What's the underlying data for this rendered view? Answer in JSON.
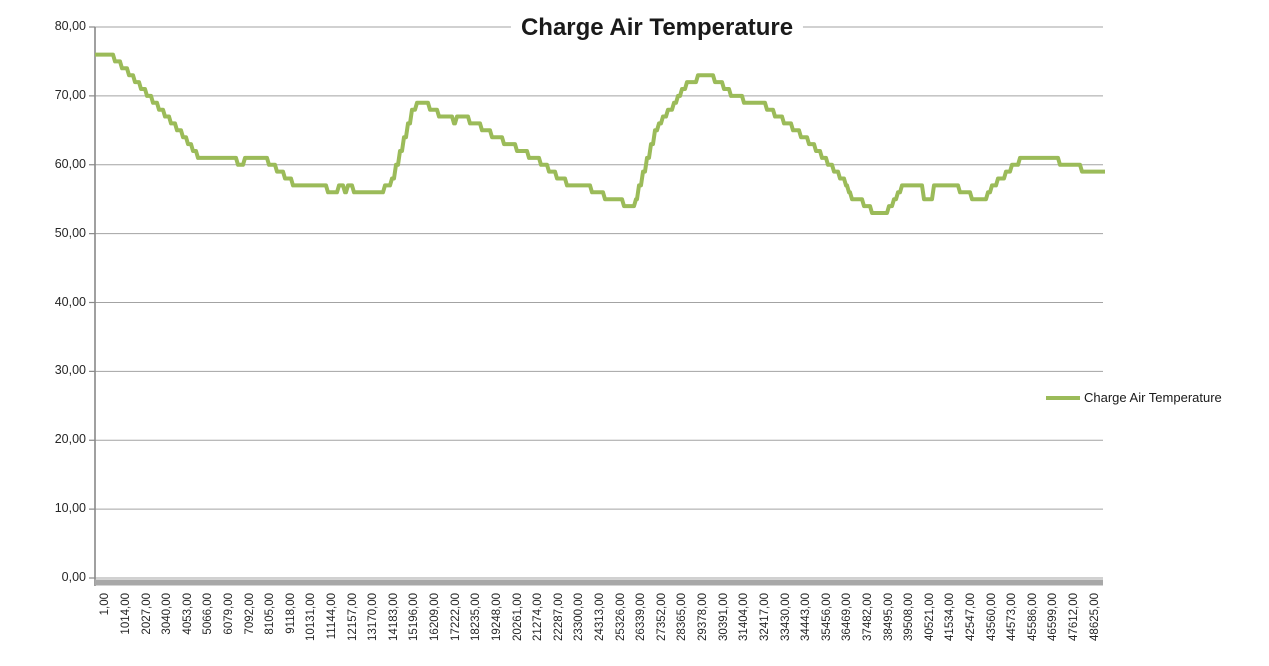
{
  "page": {
    "background": "#ffffff"
  },
  "legend": {
    "label": "Charge Air Temperature"
  },
  "chart_data": {
    "type": "line",
    "title": "Charge Air Temperature",
    "xlabel": "",
    "ylabel": "",
    "ylim": [
      0,
      80
    ],
    "grid": "horizontal",
    "legend_position": "right",
    "colors": {
      "series_line": "#9BBB59",
      "gridline": "#a3a3a3",
      "axis_line": "#898989",
      "x_axis_bar": "#a8a8a8",
      "title_text": "#1a1a1a",
      "tick_text": "#262626"
    },
    "y_tick_labels": [
      "0,00",
      "10,00",
      "20,00",
      "30,00",
      "40,00",
      "50,00",
      "60,00",
      "70,00",
      "80,00"
    ],
    "x_tick_labels": [
      "1,00",
      "1014,00",
      "2027,00",
      "3040,00",
      "4053,00",
      "5066,00",
      "6079,00",
      "7092,00",
      "8105,00",
      "9118,00",
      "10131,00",
      "11144,00",
      "12157,00",
      "13170,00",
      "14183,00",
      "15196,00",
      "16209,00",
      "17222,00",
      "18235,00",
      "19248,00",
      "20261,00",
      "21274,00",
      "22287,00",
      "23300,00",
      "24313,00",
      "25326,00",
      "26339,00",
      "27352,00",
      "28365,00",
      "29378,00",
      "30391,00",
      "31404,00",
      "32417,00",
      "33430,00",
      "34443,00",
      "35456,00",
      "36469,00",
      "37482,00",
      "38495,00",
      "39508,00",
      "40521,00",
      "41534,00",
      "42547,00",
      "43560,00",
      "44573,00",
      "45586,00",
      "46599,00",
      "47612,00",
      "48625,00"
    ],
    "series": [
      {
        "name": "Charge Air Temperature",
        "color": "#9BBB59",
        "points": [
          [
            0,
            76
          ],
          [
            18,
            76
          ],
          [
            20,
            75
          ],
          [
            25,
            75
          ],
          [
            27,
            74
          ],
          [
            32,
            74
          ],
          [
            34,
            73
          ],
          [
            38,
            73
          ],
          [
            40,
            72
          ],
          [
            44,
            72
          ],
          [
            46,
            71
          ],
          [
            50,
            71
          ],
          [
            52,
            70
          ],
          [
            56,
            70
          ],
          [
            58,
            69
          ],
          [
            62,
            69
          ],
          [
            64,
            68
          ],
          [
            68,
            68
          ],
          [
            70,
            67
          ],
          [
            74,
            67
          ],
          [
            76,
            66
          ],
          [
            80,
            66
          ],
          [
            82,
            65
          ],
          [
            86,
            65
          ],
          [
            88,
            64
          ],
          [
            91,
            64
          ],
          [
            93,
            63
          ],
          [
            96,
            63
          ],
          [
            98,
            62
          ],
          [
            101,
            62
          ],
          [
            103,
            61
          ],
          [
            141,
            61
          ],
          [
            143,
            60
          ],
          [
            148,
            60
          ],
          [
            150,
            61
          ],
          [
            172,
            61
          ],
          [
            174,
            60
          ],
          [
            180,
            60
          ],
          [
            182,
            59
          ],
          [
            188,
            59
          ],
          [
            190,
            58
          ],
          [
            196,
            58
          ],
          [
            198,
            57
          ],
          [
            231,
            57
          ],
          [
            233,
            56
          ],
          [
            242,
            56
          ],
          [
            244,
            57
          ],
          [
            248,
            57
          ],
          [
            250,
            56
          ],
          [
            251,
            56
          ],
          [
            253,
            57
          ],
          [
            257,
            57
          ],
          [
            259,
            56
          ],
          [
            288,
            56
          ],
          [
            290,
            57
          ],
          [
            295,
            57
          ],
          [
            297,
            58
          ],
          [
            299,
            58
          ],
          [
            301,
            60
          ],
          [
            303,
            60
          ],
          [
            305,
            62
          ],
          [
            307,
            62
          ],
          [
            309,
            64
          ],
          [
            311,
            64
          ],
          [
            313,
            66
          ],
          [
            315,
            66
          ],
          [
            317,
            68
          ],
          [
            320,
            68
          ],
          [
            322,
            69
          ],
          [
            333,
            69
          ],
          [
            335,
            68
          ],
          [
            342,
            68
          ],
          [
            344,
            67
          ],
          [
            357,
            67
          ],
          [
            359,
            66
          ],
          [
            360,
            66
          ],
          [
            362,
            67
          ],
          [
            373,
            67
          ],
          [
            375,
            66
          ],
          [
            385,
            66
          ],
          [
            387,
            65
          ],
          [
            395,
            65
          ],
          [
            397,
            64
          ],
          [
            407,
            64
          ],
          [
            409,
            63
          ],
          [
            420,
            63
          ],
          [
            422,
            62
          ],
          [
            432,
            62
          ],
          [
            434,
            61
          ],
          [
            444,
            61
          ],
          [
            446,
            60
          ],
          [
            452,
            60
          ],
          [
            454,
            59
          ],
          [
            460,
            59
          ],
          [
            462,
            58
          ],
          [
            470,
            58
          ],
          [
            472,
            57
          ],
          [
            495,
            57
          ],
          [
            497,
            56
          ],
          [
            508,
            56
          ],
          [
            510,
            55
          ],
          [
            527,
            55
          ],
          [
            529,
            54
          ],
          [
            539,
            54
          ],
          [
            541,
            55
          ],
          [
            542,
            55
          ],
          [
            544,
            57
          ],
          [
            546,
            57
          ],
          [
            548,
            59
          ],
          [
            550,
            59
          ],
          [
            552,
            61
          ],
          [
            554,
            61
          ],
          [
            556,
            63
          ],
          [
            558,
            63
          ],
          [
            560,
            65
          ],
          [
            562,
            65
          ],
          [
            564,
            66
          ],
          [
            566,
            66
          ],
          [
            568,
            67
          ],
          [
            571,
            67
          ],
          [
            573,
            68
          ],
          [
            577,
            68
          ],
          [
            579,
            69
          ],
          [
            581,
            69
          ],
          [
            583,
            70
          ],
          [
            585,
            70
          ],
          [
            587,
            71
          ],
          [
            590,
            71
          ],
          [
            592,
            72
          ],
          [
            601,
            72
          ],
          [
            603,
            73
          ],
          [
            618,
            73
          ],
          [
            620,
            72
          ],
          [
            627,
            72
          ],
          [
            629,
            71
          ],
          [
            634,
            71
          ],
          [
            636,
            70
          ],
          [
            647,
            70
          ],
          [
            649,
            69
          ],
          [
            670,
            69
          ],
          [
            672,
            68
          ],
          [
            678,
            68
          ],
          [
            680,
            67
          ],
          [
            687,
            67
          ],
          [
            689,
            66
          ],
          [
            696,
            66
          ],
          [
            698,
            65
          ],
          [
            704,
            65
          ],
          [
            706,
            64
          ],
          [
            712,
            64
          ],
          [
            714,
            63
          ],
          [
            719,
            63
          ],
          [
            721,
            62
          ],
          [
            725,
            62
          ],
          [
            727,
            61
          ],
          [
            731,
            61
          ],
          [
            733,
            60
          ],
          [
            737,
            60
          ],
          [
            739,
            59
          ],
          [
            743,
            59
          ],
          [
            745,
            58
          ],
          [
            749,
            58
          ],
          [
            751,
            57
          ],
          [
            752,
            57
          ],
          [
            754,
            56
          ],
          [
            755,
            56
          ],
          [
            757,
            55
          ],
          [
            767,
            55
          ],
          [
            769,
            54
          ],
          [
            775,
            54
          ],
          [
            777,
            53
          ],
          [
            792,
            53
          ],
          [
            794,
            54
          ],
          [
            797,
            54
          ],
          [
            799,
            55
          ],
          [
            801,
            55
          ],
          [
            803,
            56
          ],
          [
            805,
            56
          ],
          [
            807,
            57
          ],
          [
            810,
            57
          ],
          [
            827,
            57
          ],
          [
            829,
            55
          ],
          [
            837,
            55
          ],
          [
            839,
            57
          ],
          [
            863,
            57
          ],
          [
            865,
            56
          ],
          [
            875,
            56
          ],
          [
            877,
            55
          ],
          [
            891,
            55
          ],
          [
            893,
            56
          ],
          [
            895,
            56
          ],
          [
            897,
            57
          ],
          [
            901,
            57
          ],
          [
            903,
            58
          ],
          [
            909,
            58
          ],
          [
            911,
            59
          ],
          [
            915,
            59
          ],
          [
            917,
            60
          ],
          [
            923,
            60
          ],
          [
            925,
            61
          ],
          [
            963,
            61
          ],
          [
            965,
            60
          ],
          [
            985,
            60
          ],
          [
            987,
            59
          ],
          [
            1010,
            59
          ]
        ]
      }
    ]
  }
}
